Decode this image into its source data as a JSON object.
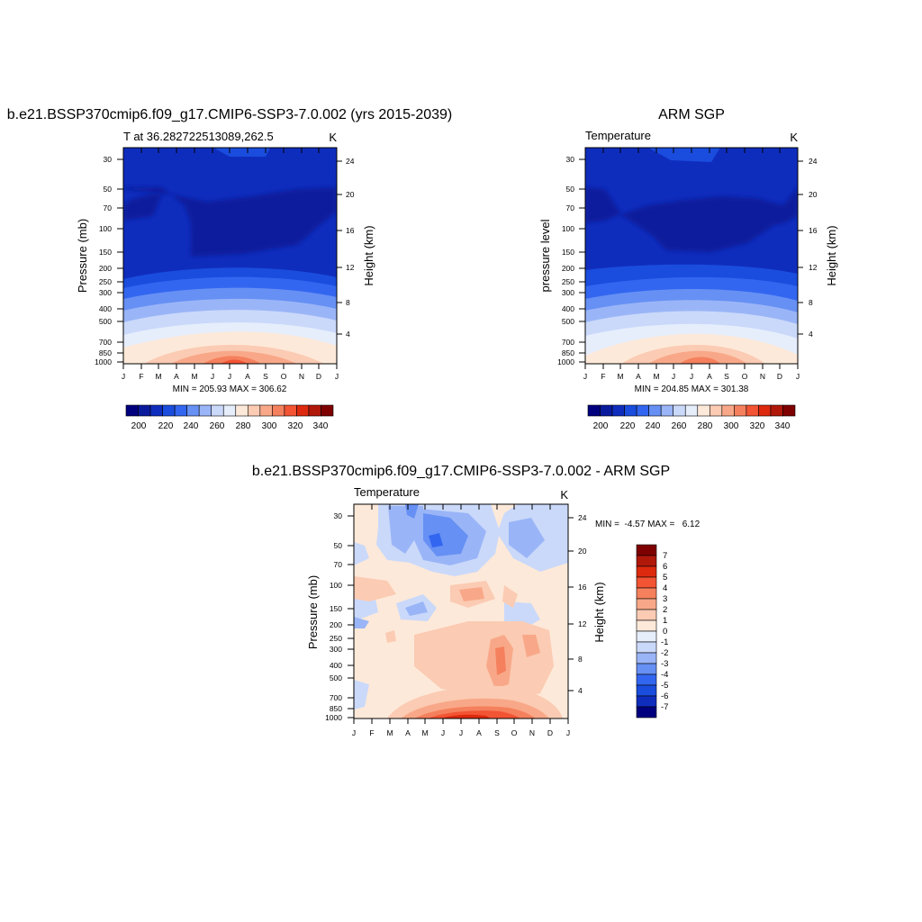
{
  "chart_data": [
    {
      "type": "heatmap",
      "title": "b.e21.BSSP370cmip6.f09_g17.CMIP6-SSP3-7.0.002 (yrs 2015-2039)",
      "subtitle_left": "T at 36.282722513089,262.5",
      "subtitle_right": "K",
      "ylabel": "Pressure (mb)",
      "ylabel_right": "Height (km)",
      "x": [
        "J",
        "F",
        "M",
        "A",
        "M",
        "J",
        "J",
        "A",
        "S",
        "O",
        "N",
        "D",
        "J"
      ],
      "y": [
        30,
        50,
        70,
        100,
        150,
        200,
        250,
        300,
        400,
        500,
        700,
        850,
        1000
      ],
      "y_scale": "log",
      "y_right_ticks": [
        24,
        20,
        16,
        12,
        8,
        4
      ],
      "minmax_text": "MIN = 205.93 MAX = 306.62",
      "colorbar": {
        "orientation": "horizontal",
        "labels": [
          "200",
          "220",
          "240",
          "260",
          "280",
          "300",
          "320",
          "340"
        ],
        "levels": [
          190,
          200,
          210,
          220,
          230,
          240,
          250,
          260,
          270,
          280,
          290,
          300,
          310,
          320,
          330,
          340,
          350
        ],
        "colors": [
          "#00007f",
          "#0a1a9c",
          "#0f2dbd",
          "#1a4ddd",
          "#3366f0",
          "#6690f4",
          "#9ab5f7",
          "#cad9fa",
          "#e6eefc",
          "#fde9d9",
          "#fbcbb3",
          "#f8a888",
          "#f5805d",
          "#f25434",
          "#dd2a0f",
          "#b0180a",
          "#7f0000"
        ]
      }
    },
    {
      "type": "heatmap",
      "title": "ARM SGP",
      "subtitle_left": "Temperature",
      "subtitle_right": "K",
      "ylabel": "pressure level",
      "ylabel_right": "Height (km)",
      "x": [
        "J",
        "F",
        "M",
        "A",
        "M",
        "J",
        "J",
        "A",
        "S",
        "O",
        "N",
        "D",
        "J"
      ],
      "y": [
        30,
        50,
        70,
        100,
        150,
        200,
        250,
        300,
        400,
        500,
        700,
        850,
        1000
      ],
      "y_scale": "log",
      "y_right_ticks": [
        24,
        20,
        16,
        12,
        8,
        4
      ],
      "minmax_text": "MIN = 204.85 MAX = 301.38",
      "colorbar": {
        "orientation": "horizontal",
        "labels": [
          "200",
          "220",
          "240",
          "260",
          "280",
          "300",
          "320",
          "340"
        ]
      }
    },
    {
      "type": "heatmap",
      "title": "b.e21.BSSP370cmip6.f09_g17.CMIP6-SSP3-7.0.002 - ARM SGP",
      "subtitle_left": "Temperature",
      "subtitle_right": "K",
      "ylabel": "Pressure (mb)",
      "ylabel_right": "Height (km)",
      "x": [
        "J",
        "F",
        "M",
        "A",
        "M",
        "J",
        "J",
        "A",
        "S",
        "O",
        "N",
        "D",
        "J"
      ],
      "y": [
        30,
        50,
        70,
        100,
        150,
        200,
        250,
        300,
        400,
        500,
        700,
        850,
        1000
      ],
      "y_scale": "log",
      "y_right_ticks": [
        24,
        20,
        16,
        12,
        8,
        4
      ],
      "minmax_text": "MIN =  -4.57 MAX =   6.12",
      "colorbar": {
        "orientation": "vertical",
        "labels": [
          "7",
          "6",
          "5",
          "4",
          "3",
          "2",
          "1",
          "0",
          "-1",
          "-2",
          "-3",
          "-4",
          "-5",
          "-6",
          "-7"
        ],
        "colors": [
          "#7f0000",
          "#b0180a",
          "#dd2a0f",
          "#f25434",
          "#f5805d",
          "#f8a888",
          "#fbcbb3",
          "#fde9d9",
          "#e6eefc",
          "#cad9fa",
          "#9ab5f7",
          "#6690f4",
          "#3366f0",
          "#1a4ddd",
          "#0f2dbd",
          "#00007f"
        ]
      }
    }
  ]
}
